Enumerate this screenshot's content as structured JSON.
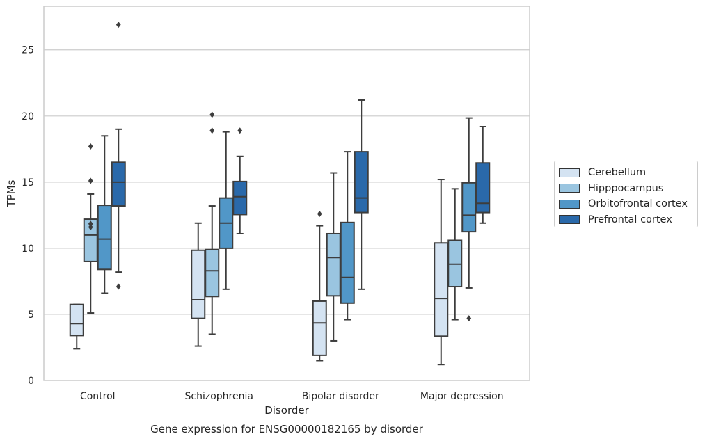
{
  "chart_data": {
    "type": "boxplot",
    "title": "Gene expression for ENSG00000182165 by disorder",
    "xlabel": "Disorder",
    "ylabel": "TPMs",
    "ylim": [
      0,
      28.3
    ],
    "yticks": [
      0,
      5,
      10,
      15,
      20,
      25
    ],
    "grid": true,
    "legend_position": "right",
    "categories": [
      "Control",
      "Schizophrenia",
      "Bipolar disorder",
      "Major depression"
    ],
    "series": [
      {
        "name": "Cerebellum",
        "color": "#d4e3f2",
        "boxes": [
          {
            "whislo": 2.4,
            "q1": 3.4,
            "med": 4.3,
            "q3": 5.75,
            "whishi": 5.75,
            "fliers": []
          },
          {
            "whislo": 2.6,
            "q1": 4.7,
            "med": 6.1,
            "q3": 9.85,
            "whishi": 11.9,
            "fliers": []
          },
          {
            "whislo": 1.5,
            "q1": 1.9,
            "med": 4.35,
            "q3": 6.0,
            "whishi": 11.7,
            "fliers": [
              12.6
            ]
          },
          {
            "whislo": 1.2,
            "q1": 3.35,
            "med": 6.2,
            "q3": 10.4,
            "whishi": 15.2,
            "fliers": []
          }
        ]
      },
      {
        "name": "Hipppocampus",
        "color": "#9ac5e0",
        "boxes": [
          {
            "whislo": 5.1,
            "q1": 9.0,
            "med": 11.0,
            "q3": 12.2,
            "whishi": 14.1,
            "fliers": [
              11.6,
              11.85,
              15.1,
              17.7
            ]
          },
          {
            "whislo": 3.5,
            "q1": 6.35,
            "med": 8.3,
            "q3": 9.9,
            "whishi": 13.2,
            "fliers": [
              18.9,
              20.1
            ]
          },
          {
            "whislo": 3.0,
            "q1": 6.4,
            "med": 9.3,
            "q3": 11.1,
            "whishi": 15.7,
            "fliers": []
          },
          {
            "whislo": 4.6,
            "q1": 7.1,
            "med": 8.8,
            "q3": 10.6,
            "whishi": 14.5,
            "fliers": []
          }
        ]
      },
      {
        "name": "Orbitofrontal cortex",
        "color": "#5197c8",
        "boxes": [
          {
            "whislo": 6.6,
            "q1": 8.4,
            "med": 10.7,
            "q3": 13.25,
            "whishi": 18.5,
            "fliers": []
          },
          {
            "whislo": 6.9,
            "q1": 10.0,
            "med": 11.9,
            "q3": 13.8,
            "whishi": 18.8,
            "fliers": []
          },
          {
            "whislo": 4.6,
            "q1": 5.85,
            "med": 7.8,
            "q3": 11.95,
            "whishi": 17.3,
            "fliers": []
          },
          {
            "whislo": 7.0,
            "q1": 11.25,
            "med": 12.5,
            "q3": 14.95,
            "whishi": 19.85,
            "fliers": [
              4.7
            ]
          }
        ]
      },
      {
        "name": "Prefrontal cortex",
        "color": "#2a69aa",
        "boxes": [
          {
            "whislo": 8.2,
            "q1": 13.2,
            "med": 15.0,
            "q3": 16.5,
            "whishi": 19.0,
            "fliers": [
              7.1,
              26.9
            ]
          },
          {
            "whislo": 11.1,
            "q1": 12.55,
            "med": 13.9,
            "q3": 15.05,
            "whishi": 16.95,
            "fliers": [
              18.9
            ]
          },
          {
            "whislo": 6.9,
            "q1": 12.7,
            "med": 13.8,
            "q3": 17.3,
            "whishi": 21.2,
            "fliers": []
          },
          {
            "whislo": 11.9,
            "q1": 12.7,
            "med": 13.4,
            "q3": 16.45,
            "whishi": 19.2,
            "fliers": []
          }
        ]
      }
    ]
  }
}
